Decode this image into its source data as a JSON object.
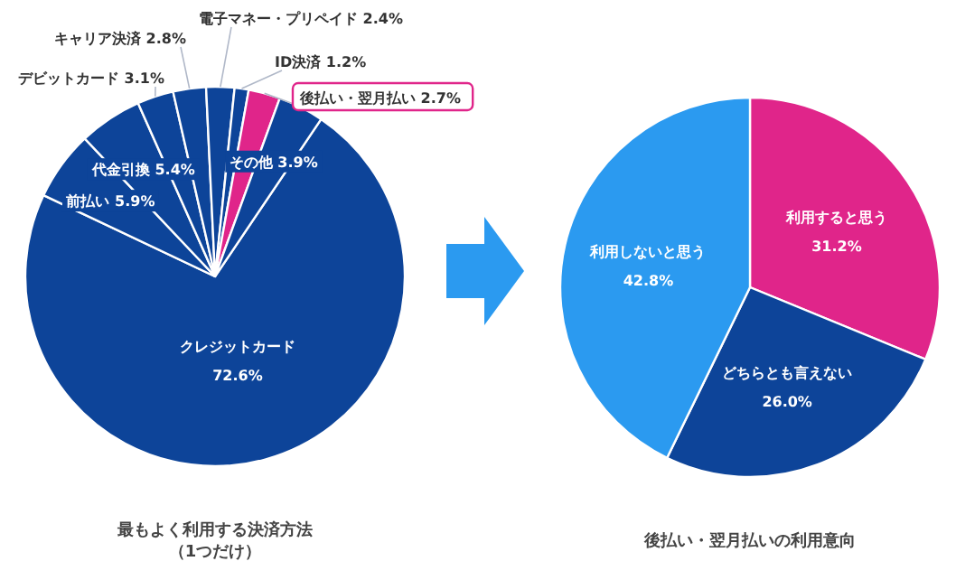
{
  "chart_data": [
    {
      "type": "pie",
      "title": "最もよく利用する決済方法（1つだけ）",
      "categories": [
        "クレジットカード",
        "前払い",
        "代金引換",
        "デビットカード",
        "キャリア決済",
        "電子マネー・プリペイド",
        "ID決済",
        "後払い・翌月払い",
        "その他"
      ],
      "values": [
        72.6,
        5.9,
        5.4,
        3.1,
        2.8,
        2.4,
        1.2,
        2.7,
        3.9
      ],
      "value_labels": [
        "72.6%",
        "5.9%",
        "5.4%",
        "3.1%",
        "2.8%",
        "2.4%",
        "1.2%",
        "2.7%",
        "3.9%"
      ],
      "colors": [
        "#0d4499",
        "#0d4499",
        "#0d4499",
        "#0d4499",
        "#0d4499",
        "#0d4499",
        "#0d4499",
        "#e0258a",
        "#0d4499"
      ]
    },
    {
      "type": "pie",
      "title": "後払い・翌月払いの利用意向",
      "categories": [
        "利用すると思う",
        "どちらとも言えない",
        "利用しないと思う"
      ],
      "values": [
        31.2,
        26.0,
        42.8
      ],
      "value_labels": [
        "31.2%",
        "26.0%",
        "42.8%"
      ],
      "colors": [
        "#e0258a",
        "#0d4499",
        "#2b9af0"
      ]
    }
  ]
}
